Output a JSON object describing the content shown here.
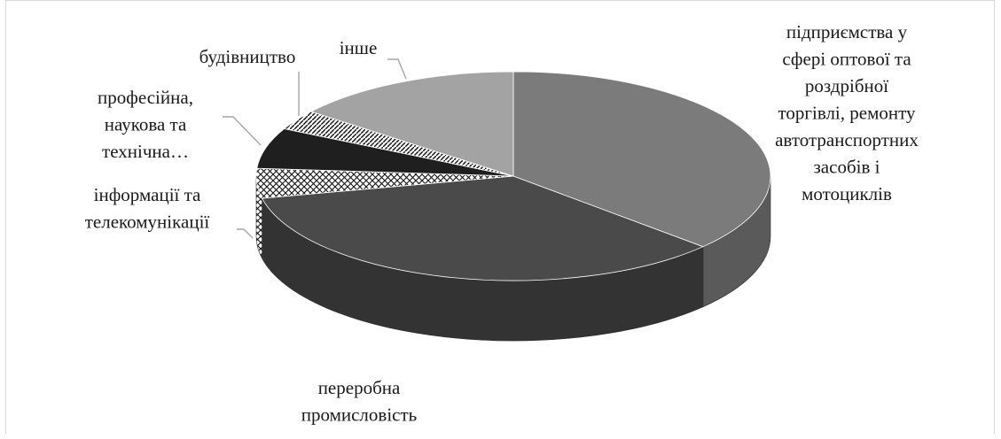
{
  "chart_data": {
    "type": "pie",
    "style": "3d",
    "title": "",
    "legend": "none",
    "slices": [
      {
        "label": "підприємства у сфері оптової та роздрібної торгівлі, ремонту автотранспортних засобів і мотоциклів",
        "label_lines": [
          "підприємства у",
          "сфері оптової та",
          "роздрібної",
          "торгівлі, ремонту",
          "автотранспортних",
          "засобів і",
          "мотоциклів"
        ],
        "value": 36.8,
        "fill": "#7b7b7b",
        "side": "#5a5a5a",
        "pattern": "solid"
      },
      {
        "label": "переробна промисловість",
        "label_lines": [
          "переробна",
          "промисловість"
        ],
        "value": 34.8,
        "fill": "#4a4a4a",
        "side": "#333333",
        "pattern": "solid"
      },
      {
        "label": "інформації та телекомунікації",
        "label_lines": [
          "інформації та",
          "телекомунікації"
        ],
        "value": 4.6,
        "fill": "#ffffff",
        "side": "#f0f0f0",
        "pattern": "crosshatch"
      },
      {
        "label": "професійна, наукова та технічна…",
        "label_lines": [
          "професійна,",
          "наукова та",
          "технічна…"
        ],
        "value": 6.3,
        "fill": "#1f1f1f",
        "side": "#111111",
        "pattern": "solid"
      },
      {
        "label": "будівництво",
        "label_lines": [
          "будівництво"
        ],
        "value": 3.1,
        "fill": "#ffffff",
        "side": "#f0f0f0",
        "pattern": "diagonal"
      },
      {
        "label": "інше",
        "label_lines": [
          "інше"
        ],
        "value": 14.4,
        "fill": "#a3a3a3",
        "side": "#808080",
        "pattern": "solid"
      }
    ]
  }
}
